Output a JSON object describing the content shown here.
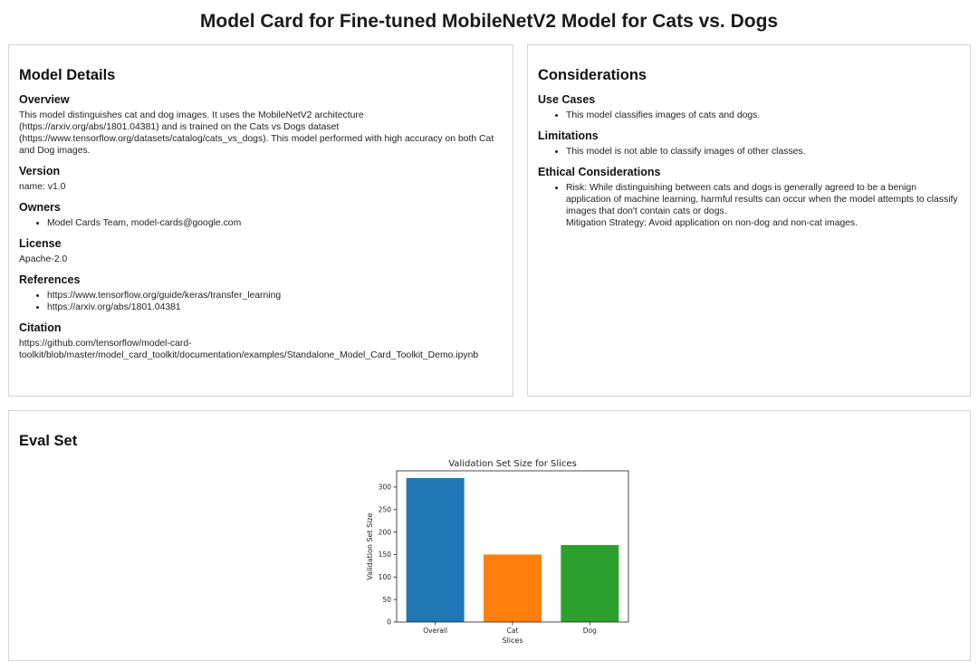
{
  "title": "Model Card for Fine-tuned MobileNetV2 Model for Cats vs. Dogs",
  "model_details": {
    "heading": "Model Details",
    "overview": {
      "heading": "Overview",
      "text": "This model distinguishes cat and dog images. It uses the MobileNetV2 architecture (https://arxiv.org/abs/1801.04381) and is trained on the Cats vs Dogs dataset (https://www.tensorflow.org/datasets/catalog/cats_vs_dogs). This model performed with high accuracy on both Cat and Dog images."
    },
    "version": {
      "heading": "Version",
      "text": "name: v1.0"
    },
    "owners": {
      "heading": "Owners",
      "items": [
        "Model Cards Team, model-cards@google.com"
      ]
    },
    "license": {
      "heading": "License",
      "text": "Apache-2.0"
    },
    "references": {
      "heading": "References",
      "items": [
        "https://www.tensorflow.org/guide/keras/transfer_learning",
        "https://arxiv.org/abs/1801.04381"
      ]
    },
    "citation": {
      "heading": "Citation",
      "text": "https://github.com/tensorflow/model-card-toolkit/blob/master/model_card_toolkit/documentation/examples/Standalone_Model_Card_Toolkit_Demo.ipynb"
    }
  },
  "considerations": {
    "heading": "Considerations",
    "use_cases": {
      "heading": "Use Cases",
      "items": [
        "This model classifies images of cats and dogs."
      ]
    },
    "limitations": {
      "heading": "Limitations",
      "items": [
        "This model is not able to classify images of other classes."
      ]
    },
    "ethical": {
      "heading": "Ethical Considerations",
      "risk": "Risk: While distinguishing between cats and dogs is generally agreed to be a benign application of machine learning, harmful results can occur when the model attempts to classify images that don't contain cats or dogs.",
      "mitigation": "Mitigation Strategy: Avoid application on non-dog and non-cat images."
    }
  },
  "eval_set": {
    "heading": "Eval Set"
  },
  "chart_data": {
    "type": "bar",
    "title": "Validation Set Size for Slices",
    "xlabel": "Slices",
    "ylabel": "Validation Set Size",
    "categories": [
      "Overall",
      "Cat",
      "Dog"
    ],
    "values": [
      320,
      150,
      171
    ],
    "colors": [
      "#1f77b4",
      "#ff7f0e",
      "#2ca02c"
    ],
    "ylim": [
      0,
      336
    ],
    "yticks": [
      0,
      50,
      100,
      150,
      200,
      250,
      300
    ],
    "grid": false
  }
}
